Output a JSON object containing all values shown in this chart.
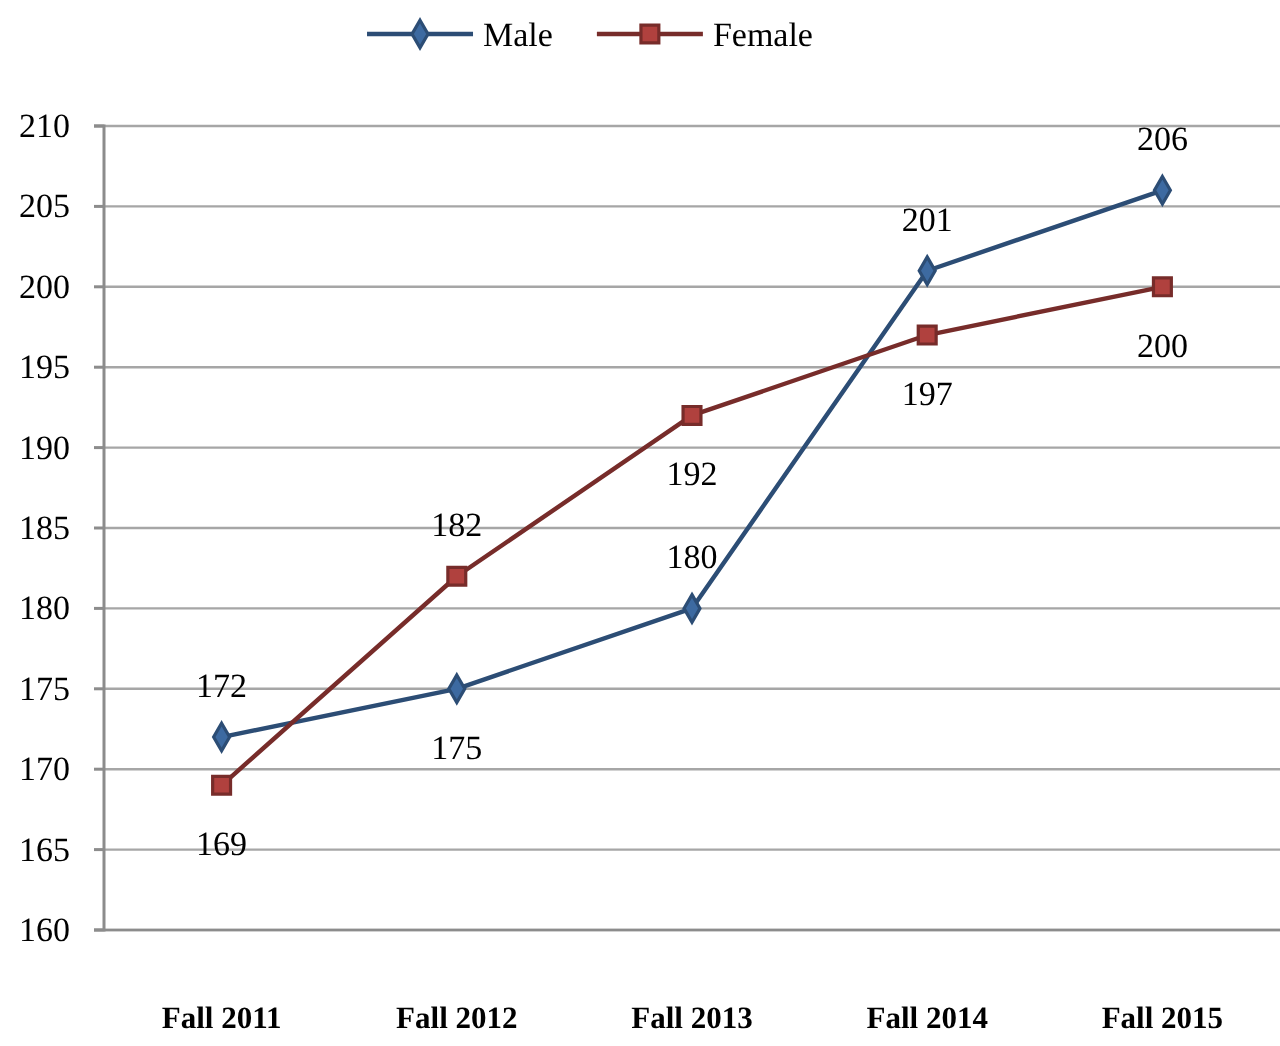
{
  "chart_data": {
    "type": "line",
    "categories": [
      "Fall 2011",
      "Fall 2012",
      "Fall 2013",
      "Fall 2014",
      "Fall 2015"
    ],
    "series": [
      {
        "name": "Male",
        "color": "#2c4d75",
        "marker": "diamond",
        "values": [
          172,
          175,
          180,
          201,
          206
        ]
      },
      {
        "name": "Female",
        "color": "#772c2a",
        "marker": "square",
        "values": [
          169,
          182,
          192,
          197,
          200
        ]
      }
    ],
    "ylim": [
      160,
      210
    ],
    "yticks": [
      160,
      165,
      170,
      175,
      180,
      185,
      190,
      195,
      200,
      205,
      210
    ],
    "grid": "y",
    "legend": "top",
    "data_labels": true
  }
}
